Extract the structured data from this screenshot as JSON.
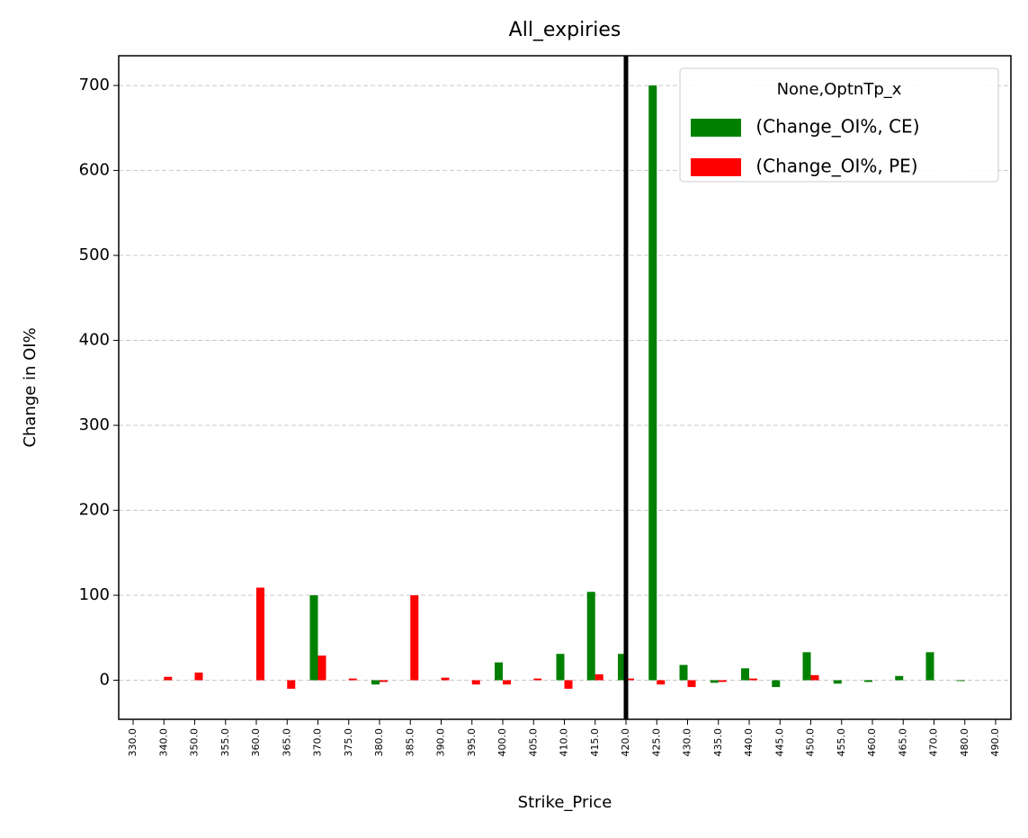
{
  "chart_data": {
    "type": "bar",
    "title": "All_expiries",
    "x_label": "Strike_Price",
    "y_label": "Change in OI%",
    "categories": [
      "330.0",
      "340.0",
      "350.0",
      "355.0",
      "360.0",
      "365.0",
      "370.0",
      "375.0",
      "380.0",
      "385.0",
      "390.0",
      "395.0",
      "400.0",
      "405.0",
      "410.0",
      "415.0",
      "420.0",
      "425.0",
      "430.0",
      "435.0",
      "440.0",
      "445.0",
      "450.0",
      "455.0",
      "460.0",
      "465.0",
      "470.0",
      "480.0",
      "490.0"
    ],
    "series": [
      {
        "name": " (Change_OI%, CE)",
        "color": "#008000",
        "values": [
          0,
          0,
          0,
          0,
          0,
          0,
          100,
          0,
          -5,
          0,
          0,
          0,
          21,
          0,
          31,
          104,
          31,
          700,
          18,
          -3,
          14,
          -8,
          33,
          -4,
          -2,
          5,
          33,
          -1,
          0
        ]
      },
      {
        "name": " (Change_OI%, PE)",
        "color": "#ff0000",
        "values": [
          0,
          4,
          9,
          0,
          109,
          -10,
          29,
          2,
          -2,
          100,
          3,
          -5,
          -5,
          2,
          -10,
          7,
          2,
          -5,
          -8,
          -2,
          2,
          0,
          6,
          0,
          0,
          0,
          0,
          0,
          0
        ]
      }
    ],
    "legend_title": "None,OptnTp_x",
    "legend_position": "upper right",
    "vline_category": "420.0",
    "vline_color": "#000000",
    "ylim": [
      -46,
      735
    ],
    "yticks": [
      0,
      100,
      200,
      300,
      400,
      500,
      600,
      700
    ],
    "grid": true
  }
}
